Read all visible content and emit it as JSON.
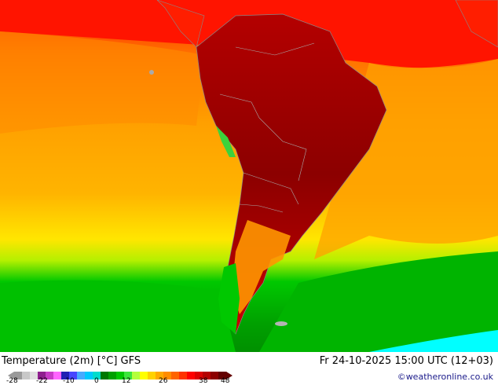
{
  "title": "Temperature (2m) [°C] GFS",
  "datetime": "Fr 24-10-2025 15:00 UTC (12+03)",
  "credit": "©weatheronline.co.uk",
  "legend": {
    "ticks": [
      "-28",
      "-22",
      "-10",
      "0",
      "12",
      "26",
      "38",
      "48"
    ],
    "colors": [
      "#9a9a9a",
      "#c8c8c8",
      "#e0e0e0",
      "#8f1f8f",
      "#c83cc8",
      "#ff64ff",
      "#2020b4",
      "#4646ff",
      "#46aaff",
      "#00c8ff",
      "#00dccc",
      "#007800",
      "#00a000",
      "#00c800",
      "#3ce63c",
      "#b4ff3c",
      "#ffff00",
      "#ffd200",
      "#ffaa00",
      "#ff8c00",
      "#ff6400",
      "#ff3200",
      "#ff0000",
      "#dc0000",
      "#b40000",
      "#8c0000",
      "#640000"
    ]
  },
  "map": {
    "colors": {
      "ocean_deep_green": "#00b400",
      "ocean_green": "#00c800",
      "yellow": "#ffe600",
      "orange": "#ff9600",
      "red": "#ff1e00",
      "dark_red": "#8c0000",
      "cyan": "#00ffff"
    }
  }
}
